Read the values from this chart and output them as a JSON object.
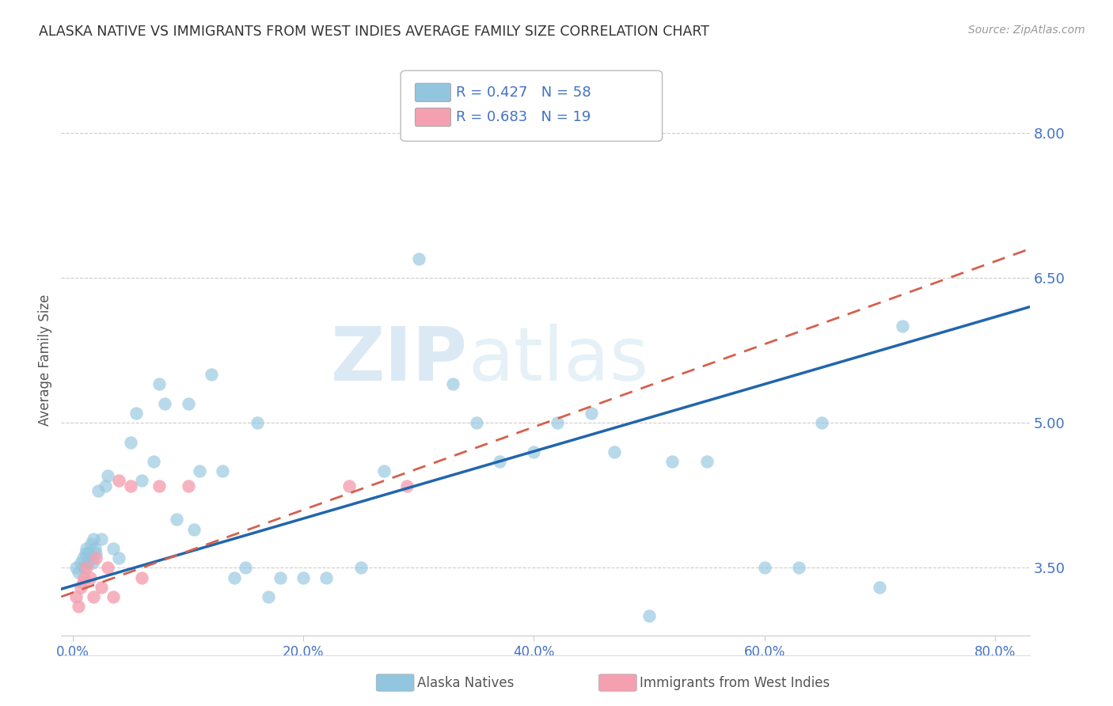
{
  "title": "ALASKA NATIVE VS IMMIGRANTS FROM WEST INDIES AVERAGE FAMILY SIZE CORRELATION CHART",
  "source_text": "Source: ZipAtlas.com",
  "ylabel": "Average Family Size",
  "xlabel_ticks": [
    "0.0%",
    "20.0%",
    "40.0%",
    "60.0%",
    "80.0%"
  ],
  "xlabel_vals": [
    0.0,
    20.0,
    40.0,
    60.0,
    80.0
  ],
  "yticks": [
    3.5,
    5.0,
    6.5,
    8.0
  ],
  "ymin": 2.8,
  "ymax": 8.5,
  "xmin": -1.0,
  "xmax": 83.0,
  "legend_blue_r": "R = 0.427",
  "legend_blue_n": "N = 58",
  "legend_pink_r": "R = 0.683",
  "legend_pink_n": "N = 19",
  "legend_blue_label": "Alaska Natives",
  "legend_pink_label": "Immigrants from West Indies",
  "watermark_zip": "ZIP",
  "watermark_atlas": "atlas",
  "blue_color": "#92c5de",
  "blue_line_color": "#2166ac",
  "pink_color": "#f4a0b0",
  "pink_line_color": "#d6604d",
  "axis_label_color": "#4472c4",
  "title_color": "#333333",
  "blue_scatter_x": [
    0.3,
    0.5,
    0.7,
    0.9,
    1.0,
    1.1,
    1.2,
    1.3,
    1.4,
    1.5,
    1.6,
    1.7,
    1.8,
    1.9,
    2.0,
    2.2,
    2.5,
    2.8,
    3.0,
    3.5,
    4.0,
    5.0,
    5.5,
    6.0,
    7.0,
    7.5,
    8.0,
    9.0,
    10.0,
    10.5,
    11.0,
    12.0,
    13.0,
    14.0,
    15.0,
    16.0,
    17.0,
    18.0,
    20.0,
    22.0,
    25.0,
    27.0,
    30.0,
    33.0,
    35.0,
    37.0,
    40.0,
    42.0,
    45.0,
    47.0,
    50.0,
    52.0,
    55.0,
    60.0,
    63.0,
    65.0,
    70.0,
    72.0
  ],
  "blue_scatter_y": [
    3.5,
    3.45,
    3.55,
    3.6,
    3.5,
    3.65,
    3.7,
    3.55,
    3.65,
    3.6,
    3.75,
    3.55,
    3.8,
    3.7,
    3.65,
    4.3,
    3.8,
    4.35,
    4.45,
    3.7,
    3.6,
    4.8,
    5.1,
    4.4,
    4.6,
    5.4,
    5.2,
    4.0,
    5.2,
    3.9,
    4.5,
    5.5,
    4.5,
    3.4,
    3.5,
    5.0,
    3.2,
    3.4,
    3.4,
    3.4,
    3.5,
    4.5,
    6.7,
    5.4,
    5.0,
    4.6,
    4.7,
    5.0,
    5.1,
    4.7,
    3.0,
    4.6,
    4.6,
    3.5,
    3.5,
    5.0,
    3.3,
    6.0
  ],
  "pink_scatter_x": [
    0.3,
    0.5,
    0.7,
    0.9,
    1.0,
    1.2,
    1.5,
    1.8,
    2.0,
    2.5,
    3.0,
    3.5,
    4.0,
    5.0,
    6.0,
    7.5,
    10.0,
    24.0,
    29.0
  ],
  "pink_scatter_y": [
    3.2,
    3.1,
    3.3,
    3.35,
    3.4,
    3.5,
    3.4,
    3.2,
    3.6,
    3.3,
    3.5,
    3.2,
    4.4,
    4.35,
    3.4,
    4.35,
    4.35,
    4.35,
    4.35
  ],
  "blue_line_x0": -1.0,
  "blue_line_x1": 83.0,
  "blue_line_y0": 3.28,
  "blue_line_y1": 6.2,
  "pink_line_x0": -1.0,
  "pink_line_x1": 83.0,
  "pink_line_y0": 3.2,
  "pink_line_y1": 6.8
}
